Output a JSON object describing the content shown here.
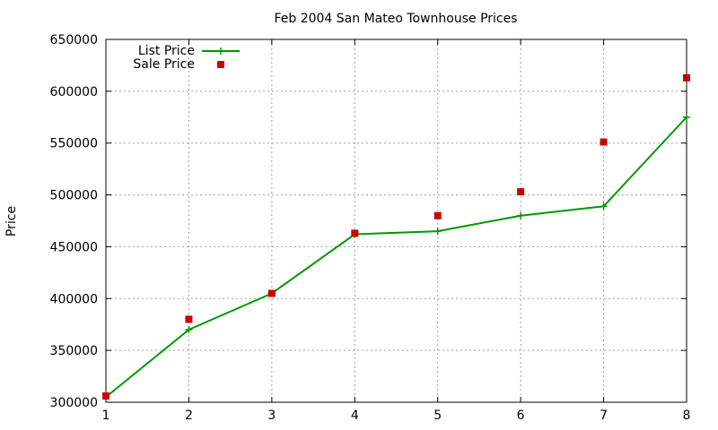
{
  "chart_data": {
    "type": "line",
    "title": "Feb 2004 San Mateo Townhouse Prices",
    "xlabel": "",
    "ylabel": "Price",
    "xlim": [
      1,
      8
    ],
    "ylim": [
      300000,
      650000
    ],
    "x_ticks": [
      1,
      2,
      3,
      4,
      5,
      6,
      7,
      8
    ],
    "y_ticks": [
      300000,
      350000,
      400000,
      450000,
      500000,
      550000,
      600000,
      650000
    ],
    "grid": true,
    "legend_position": "top-left",
    "series": [
      {
        "name": "List Price",
        "style": "line+cross",
        "color": "#009900",
        "x": [
          1,
          2,
          3,
          4,
          5,
          6,
          7,
          8
        ],
        "y": [
          305000,
          370000,
          405000,
          462000,
          465000,
          480000,
          489000,
          575000
        ]
      },
      {
        "name": "Sale Price",
        "style": "square",
        "color": "#cc0000",
        "x": [
          1,
          2,
          3,
          4,
          5,
          6,
          7,
          8
        ],
        "y": [
          306000,
          380000,
          405000,
          463000,
          480000,
          503000,
          551000,
          613000
        ]
      }
    ]
  }
}
